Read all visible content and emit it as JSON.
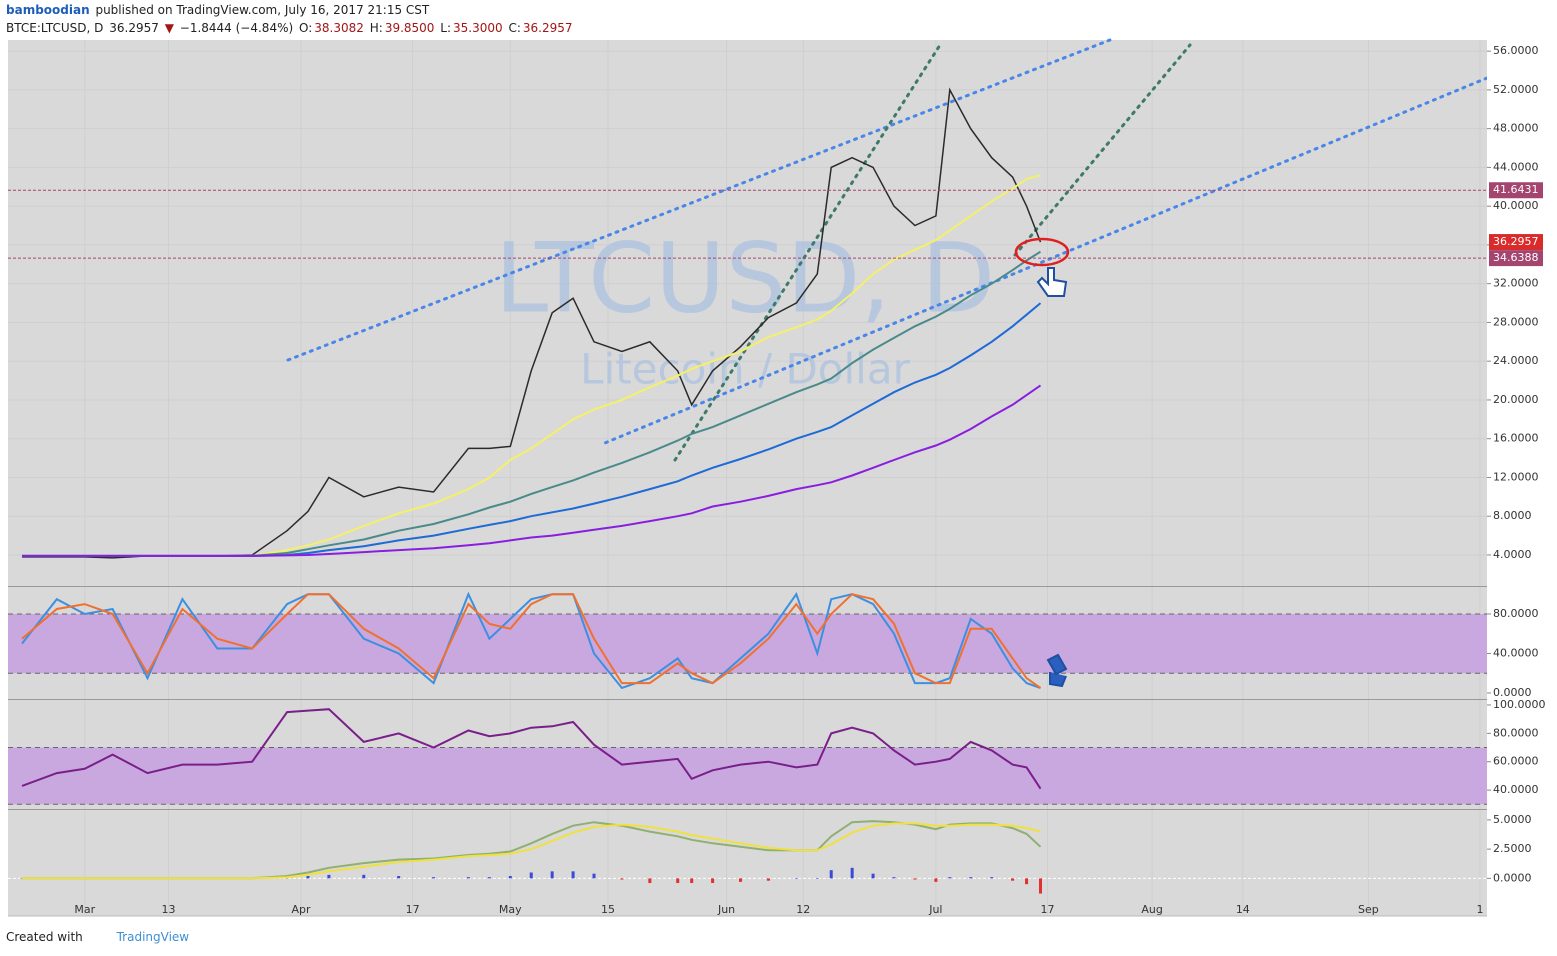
{
  "header": {
    "user": "bamboodian",
    "published": "published on TradingView.com, July 16, 2017 21:15 CST",
    "symbol": "BTCE:LTCUSD, D",
    "last": "36.2957",
    "arrow": "▼",
    "change": "−1.8444 (−4.84%)",
    "o_label": "O:",
    "o": "38.3082",
    "h_label": "H:",
    "h": "39.8500",
    "l_label": "L:",
    "l": "35.3000",
    "c_label": "C:",
    "c": "36.2957",
    "watermark": "LTCUSD, D",
    "watermark_sub": "Litecoin / Dollar"
  },
  "footer": {
    "created": "Created with",
    "brand": "TradingView"
  },
  "chart_data": [
    {
      "type": "line",
      "grid": true,
      "x": [
        "2017-02-20",
        "2017-02-25",
        "2017-03-01",
        "2017-03-05",
        "2017-03-10",
        "2017-03-15",
        "2017-03-20",
        "2017-03-25",
        "2017-03-30",
        "2017-04-02",
        "2017-04-05",
        "2017-04-10",
        "2017-04-15",
        "2017-04-20",
        "2017-04-25",
        "2017-04-28",
        "2017-05-01",
        "2017-05-04",
        "2017-05-07",
        "2017-05-10",
        "2017-05-13",
        "2017-05-17",
        "2017-05-21",
        "2017-05-25",
        "2017-05-27",
        "2017-05-30",
        "2017-06-03",
        "2017-06-07",
        "2017-06-11",
        "2017-06-14",
        "2017-06-16",
        "2017-06-19",
        "2017-06-22",
        "2017-06-25",
        "2017-06-28",
        "2017-07-01",
        "2017-07-03",
        "2017-07-06",
        "2017-07-09",
        "2017-07-12",
        "2017-07-14",
        "2017-07-16"
      ],
      "xlim": [
        "2017-02-18",
        "2017-09-18"
      ],
      "xticks": [
        {
          "value": "2017-03-01",
          "label": "Mar"
        },
        {
          "value": "2017-03-13",
          "label": "13"
        },
        {
          "value": "2017-04-01",
          "label": "Apr"
        },
        {
          "value": "2017-04-17",
          "label": "17"
        },
        {
          "value": "2017-05-01",
          "label": "May"
        },
        {
          "value": "2017-05-15",
          "label": "15"
        },
        {
          "value": "2017-06-01",
          "label": "Jun"
        },
        {
          "value": "2017-06-12",
          "label": "12"
        },
        {
          "value": "2017-07-01",
          "label": "Jul"
        },
        {
          "value": "2017-07-17",
          "label": "17"
        },
        {
          "value": "2017-08-01",
          "label": "Aug"
        },
        {
          "value": "2017-08-14",
          "label": "14"
        },
        {
          "value": "2017-09-01",
          "label": "Sep"
        },
        {
          "value": "2017-09-17",
          "label": "1"
        }
      ],
      "ylim": [
        0.9,
        57.15
      ],
      "yticks": [
        {
          "value": 4,
          "label": "4.0000"
        },
        {
          "value": 8,
          "label": "8.0000"
        },
        {
          "value": 12,
          "label": "12.0000"
        },
        {
          "value": 16,
          "label": "16.0000"
        },
        {
          "value": 20,
          "label": "20.0000"
        },
        {
          "value": 24,
          "label": "24.0000"
        },
        {
          "value": 28,
          "label": "28.0000"
        },
        {
          "value": 32,
          "label": "32.0000"
        },
        {
          "value": 36,
          "label": "36.0000"
        },
        {
          "value": 40,
          "label": "40.0000"
        },
        {
          "value": 44,
          "label": "44.0000"
        },
        {
          "value": 48,
          "label": "48.0000"
        },
        {
          "value": 52,
          "label": "52.0000"
        },
        {
          "value": 56,
          "label": "56.0000"
        }
      ],
      "series": [
        {
          "color": "#2b2b2b",
          "values": [
            3.8,
            3.8,
            3.8,
            3.7,
            3.9,
            3.9,
            3.9,
            4.0,
            6.5,
            8.5,
            12,
            10,
            11,
            10.5,
            15,
            15,
            15.2,
            23,
            29,
            30.5,
            26,
            25,
            26,
            23,
            19.5,
            23,
            25.5,
            28.5,
            30,
            33,
            44,
            45,
            44,
            40,
            38,
            39,
            52,
            48,
            45,
            43,
            40,
            36.2957
          ]
        },
        {
          "color": "#f5f06a",
          "values": [
            3.9,
            3.9,
            3.9,
            3.9,
            3.9,
            3.9,
            3.9,
            3.9,
            4.5,
            5,
            5.6,
            7,
            8.3,
            9.3,
            10.8,
            12,
            13.8,
            15,
            16.5,
            18,
            19,
            20,
            21.3,
            22.5,
            23.2,
            24,
            25,
            26.5,
            27.5,
            28.3,
            29.2,
            31,
            33,
            34.5,
            35.5,
            36.5,
            37.5,
            39,
            40.5,
            41.8,
            42.8,
            43.2
          ]
        },
        {
          "color": "#4a8a8a",
          "values": [
            3.9,
            3.9,
            3.9,
            3.9,
            3.9,
            3.9,
            3.9,
            3.9,
            4.2,
            4.6,
            5,
            5.6,
            6.5,
            7.2,
            8.2,
            8.9,
            9.5,
            10.3,
            11,
            11.7,
            12.5,
            13.5,
            14.6,
            15.8,
            16.5,
            17.2,
            18.4,
            19.6,
            20.8,
            21.6,
            22.2,
            23.8,
            25.2,
            26.4,
            27.6,
            28.6,
            29.4,
            30.8,
            32,
            33.4,
            34.4,
            35.3
          ]
        },
        {
          "color": "#1e6ad6",
          "values": [
            3.9,
            3.9,
            3.9,
            3.9,
            3.9,
            3.9,
            3.9,
            3.9,
            4,
            4.2,
            4.5,
            4.9,
            5.5,
            6,
            6.7,
            7.1,
            7.5,
            8,
            8.4,
            8.8,
            9.3,
            10,
            10.8,
            11.6,
            12.2,
            13,
            13.9,
            14.9,
            16,
            16.7,
            17.2,
            18.4,
            19.6,
            20.8,
            21.8,
            22.6,
            23.3,
            24.6,
            26,
            27.6,
            28.8,
            30
          ]
        },
        {
          "color": "#8a1ee0",
          "values": [
            3.9,
            3.9,
            3.9,
            3.9,
            3.9,
            3.9,
            3.9,
            3.9,
            3.95,
            4,
            4.1,
            4.3,
            4.5,
            4.7,
            5,
            5.2,
            5.5,
            5.8,
            6,
            6.3,
            6.6,
            7,
            7.5,
            8,
            8.3,
            9,
            9.5,
            10.1,
            10.8,
            11.2,
            11.5,
            12.2,
            13,
            13.8,
            14.6,
            15.3,
            15.9,
            17,
            18.3,
            19.5,
            20.5,
            21.5
          ]
        }
      ],
      "price_lines": [
        {
          "value": 41.6431,
          "label": "41.6431",
          "color": "#a3456f"
        },
        {
          "value": 34.6388,
          "label": "34.6388",
          "color": "#a3456f"
        }
      ],
      "last_price": {
        "value": 36.2957,
        "label": "36.2957",
        "color": "#d92b2b"
      }
    },
    {
      "type": "line",
      "band_color": "#c9a8e0",
      "x": [
        "2017-02-20",
        "2017-02-25",
        "2017-03-01",
        "2017-03-05",
        "2017-03-10",
        "2017-03-15",
        "2017-03-20",
        "2017-03-25",
        "2017-03-30",
        "2017-04-02",
        "2017-04-05",
        "2017-04-10",
        "2017-04-15",
        "2017-04-20",
        "2017-04-25",
        "2017-04-28",
        "2017-05-01",
        "2017-05-04",
        "2017-05-07",
        "2017-05-10",
        "2017-05-13",
        "2017-05-17",
        "2017-05-21",
        "2017-05-25",
        "2017-05-27",
        "2017-05-30",
        "2017-06-03",
        "2017-06-07",
        "2017-06-11",
        "2017-06-14",
        "2017-06-16",
        "2017-06-19",
        "2017-06-22",
        "2017-06-25",
        "2017-06-28",
        "2017-07-01",
        "2017-07-03",
        "2017-07-06",
        "2017-07-09",
        "2017-07-12",
        "2017-07-14",
        "2017-07-16"
      ],
      "ylim": [
        -5.1,
        106.3
      ],
      "bands": [
        20,
        80
      ],
      "yticks": [
        {
          "value": 0,
          "label": "0.0000"
        },
        {
          "value": 40,
          "label": "40.0000"
        },
        {
          "value": 80,
          "label": "80.0000"
        }
      ],
      "series": [
        {
          "color": "#3d8fe0",
          "values": [
            50,
            95,
            80,
            85,
            15,
            95,
            45,
            45,
            90,
            100,
            100,
            55,
            40,
            10,
            100,
            55,
            75,
            95,
            100,
            100,
            40,
            5,
            15,
            35,
            15,
            10,
            35,
            60,
            100,
            40,
            95,
            100,
            90,
            60,
            10,
            10,
            15,
            75,
            60,
            25,
            10,
            5
          ]
        },
        {
          "color": "#f07030",
          "values": [
            55,
            85,
            90,
            80,
            20,
            85,
            55,
            45,
            80,
            100,
            100,
            65,
            45,
            15,
            90,
            70,
            65,
            90,
            100,
            100,
            55,
            10,
            10,
            30,
            20,
            10,
            30,
            55,
            90,
            60,
            80,
            100,
            95,
            70,
            20,
            10,
            10,
            65,
            65,
            35,
            15,
            5
          ]
        }
      ]
    },
    {
      "type": "line",
      "band_color": "#c9a8e0",
      "x": [
        "2017-02-20",
        "2017-02-25",
        "2017-03-01",
        "2017-03-05",
        "2017-03-10",
        "2017-03-15",
        "2017-03-20",
        "2017-03-25",
        "2017-03-30",
        "2017-04-02",
        "2017-04-05",
        "2017-04-10",
        "2017-04-15",
        "2017-04-20",
        "2017-04-25",
        "2017-04-28",
        "2017-05-01",
        "2017-05-04",
        "2017-05-07",
        "2017-05-10",
        "2017-05-13",
        "2017-05-17",
        "2017-05-21",
        "2017-05-25",
        "2017-05-27",
        "2017-05-30",
        "2017-06-03",
        "2017-06-07",
        "2017-06-11",
        "2017-06-14",
        "2017-06-16",
        "2017-06-19",
        "2017-06-22",
        "2017-06-25",
        "2017-06-28",
        "2017-07-01",
        "2017-07-03",
        "2017-07-06",
        "2017-07-09",
        "2017-07-12",
        "2017-07-14",
        "2017-07-16"
      ],
      "ylim": [
        27.4,
        102.8
      ],
      "bands": [
        30,
        70
      ],
      "yticks": [
        {
          "value": 40,
          "label": "40.0000"
        },
        {
          "value": 60,
          "label": "60.0000"
        },
        {
          "value": 80,
          "label": "80.0000"
        },
        {
          "value": 100,
          "label": "100.0000"
        }
      ],
      "series": [
        {
          "color": "#7a1f8a",
          "values": [
            43,
            52,
            55,
            65,
            52,
            58,
            58,
            60,
            95,
            96,
            97,
            74,
            80,
            70,
            82,
            78,
            80,
            84,
            85,
            88,
            72,
            58,
            60,
            62,
            48,
            54,
            58,
            60,
            56,
            58,
            80,
            84,
            80,
            68,
            58,
            60,
            62,
            74,
            68,
            58,
            56,
            41
          ]
        }
      ]
    },
    {
      "type": "line",
      "zero_line": true,
      "x": [
        "2017-02-20",
        "2017-02-25",
        "2017-03-01",
        "2017-03-05",
        "2017-03-10",
        "2017-03-15",
        "2017-03-20",
        "2017-03-25",
        "2017-03-30",
        "2017-04-02",
        "2017-04-05",
        "2017-04-10",
        "2017-04-15",
        "2017-04-20",
        "2017-04-25",
        "2017-04-28",
        "2017-05-01",
        "2017-05-04",
        "2017-05-07",
        "2017-05-10",
        "2017-05-13",
        "2017-05-17",
        "2017-05-21",
        "2017-05-25",
        "2017-05-27",
        "2017-05-30",
        "2017-06-03",
        "2017-06-07",
        "2017-06-11",
        "2017-06-14",
        "2017-06-16",
        "2017-06-19",
        "2017-06-22",
        "2017-06-25",
        "2017-06-28",
        "2017-07-01",
        "2017-07-03",
        "2017-07-06",
        "2017-07-09",
        "2017-07-12",
        "2017-07-14",
        "2017-07-16"
      ],
      "ylim": [
        -3.22,
        5.76
      ],
      "yticks": [
        {
          "value": 0,
          "label": "0.0000"
        },
        {
          "value": 2.5,
          "label": "2.5000"
        },
        {
          "value": 5,
          "label": "5.0000"
        }
      ],
      "series": [
        {
          "kind": "bar",
          "color": "#3a4bd8",
          "neg_color": "#e03030",
          "values": [
            0,
            0,
            0,
            0,
            0,
            0,
            0,
            0,
            0.1,
            0.2,
            0.3,
            0.3,
            0.2,
            0.1,
            0.1,
            0.1,
            0.2,
            0.5,
            0.6,
            0.6,
            0.4,
            -0.1,
            -0.4,
            -0.4,
            -0.4,
            -0.4,
            -0.3,
            -0.2,
            0,
            0,
            0.7,
            0.9,
            0.4,
            0.1,
            -0.1,
            -0.3,
            0.1,
            0.1,
            0.1,
            -0.2,
            -0.5,
            -1.3
          ]
        },
        {
          "color": "#8fb070",
          "values": [
            0,
            0,
            0,
            0,
            0,
            0,
            0,
            0,
            0.2,
            0.5,
            0.9,
            1.3,
            1.6,
            1.7,
            2.0,
            2.1,
            2.3,
            3.0,
            3.8,
            4.5,
            4.8,
            4.5,
            4.0,
            3.6,
            3.3,
            3.0,
            2.7,
            2.4,
            2.4,
            2.4,
            3.6,
            4.8,
            4.9,
            4.8,
            4.6,
            4.2,
            4.6,
            4.7,
            4.7,
            4.3,
            3.8,
            2.7
          ]
        },
        {
          "color": "#f0e040",
          "values": [
            0,
            0,
            0,
            0,
            0,
            0,
            0,
            0,
            0.1,
            0.3,
            0.6,
            1.0,
            1.4,
            1.6,
            1.9,
            2.0,
            2.1,
            2.5,
            3.2,
            3.9,
            4.4,
            4.6,
            4.4,
            4.0,
            3.7,
            3.4,
            3.0,
            2.6,
            2.4,
            2.4,
            2.9,
            3.9,
            4.5,
            4.7,
            4.7,
            4.5,
            4.5,
            4.6,
            4.6,
            4.5,
            4.3,
            4.0
          ]
        }
      ]
    }
  ]
}
